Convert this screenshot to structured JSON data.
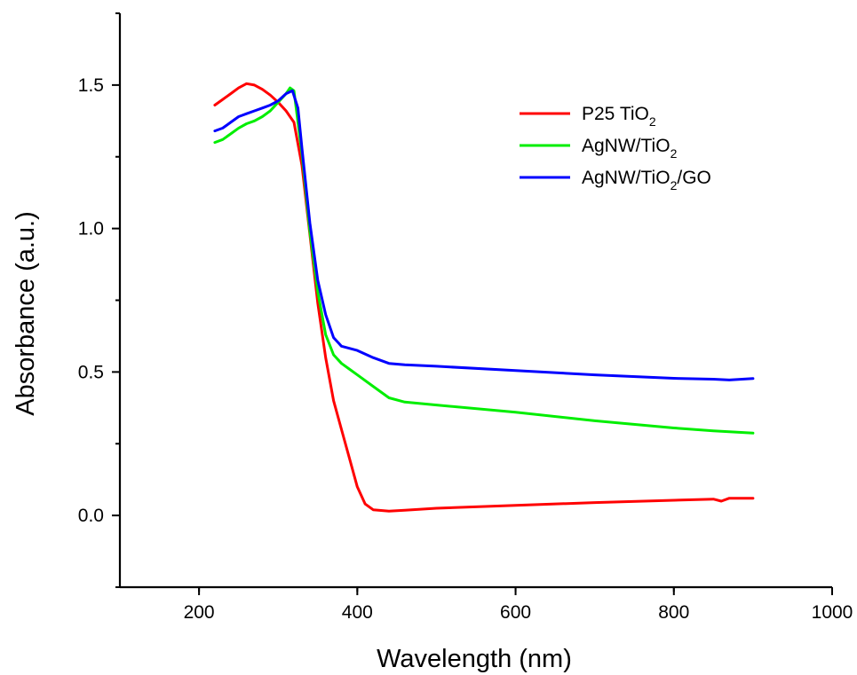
{
  "chart_data": {
    "type": "line",
    "xlabel": "Wavelength (nm)",
    "ylabel": "Absorbance (a.u.)",
    "xlim": [
      100,
      1000
    ],
    "ylim": [
      -0.25,
      1.75
    ],
    "xticks": [
      200,
      400,
      600,
      800,
      1000
    ],
    "xtick_labels": [
      "200",
      "400",
      "600",
      "800",
      "1000"
    ],
    "yticks": [
      0.0,
      0.5,
      1.0,
      1.5
    ],
    "ytick_labels": [
      "0.0",
      "0.5",
      "1.0",
      "1.5"
    ],
    "legend_position": "top-right",
    "series": [
      {
        "name": "P25 TiO2",
        "legend_main": "P25 TiO",
        "legend_sub": "2",
        "legend_tail": "",
        "color": "#ff0000",
        "points": [
          [
            220,
            1.43
          ],
          [
            230,
            1.45
          ],
          [
            240,
            1.47
          ],
          [
            250,
            1.49
          ],
          [
            260,
            1.505
          ],
          [
            270,
            1.5
          ],
          [
            280,
            1.485
          ],
          [
            290,
            1.465
          ],
          [
            300,
            1.44
          ],
          [
            310,
            1.41
          ],
          [
            320,
            1.37
          ],
          [
            330,
            1.22
          ],
          [
            340,
            0.98
          ],
          [
            350,
            0.74
          ],
          [
            360,
            0.55
          ],
          [
            370,
            0.4
          ],
          [
            380,
            0.3
          ],
          [
            390,
            0.2
          ],
          [
            400,
            0.1
          ],
          [
            410,
            0.04
          ],
          [
            420,
            0.02
          ],
          [
            440,
            0.015
          ],
          [
            460,
            0.018
          ],
          [
            500,
            0.025
          ],
          [
            600,
            0.035
          ],
          [
            700,
            0.045
          ],
          [
            800,
            0.053
          ],
          [
            850,
            0.057
          ],
          [
            860,
            0.05
          ],
          [
            870,
            0.06
          ],
          [
            900,
            0.06
          ]
        ]
      },
      {
        "name": "AgNW/TiO2",
        "legend_main": "AgNW/TiO",
        "legend_sub": "2",
        "legend_tail": "",
        "color": "#00ee00",
        "points": [
          [
            220,
            1.3
          ],
          [
            230,
            1.31
          ],
          [
            240,
            1.33
          ],
          [
            250,
            1.35
          ],
          [
            260,
            1.365
          ],
          [
            270,
            1.375
          ],
          [
            280,
            1.39
          ],
          [
            290,
            1.41
          ],
          [
            300,
            1.44
          ],
          [
            310,
            1.47
          ],
          [
            315,
            1.49
          ],
          [
            320,
            1.48
          ],
          [
            330,
            1.26
          ],
          [
            340,
            0.99
          ],
          [
            350,
            0.78
          ],
          [
            360,
            0.63
          ],
          [
            370,
            0.56
          ],
          [
            380,
            0.53
          ],
          [
            390,
            0.51
          ],
          [
            400,
            0.49
          ],
          [
            420,
            0.45
          ],
          [
            440,
            0.41
          ],
          [
            460,
            0.395
          ],
          [
            500,
            0.385
          ],
          [
            600,
            0.36
          ],
          [
            700,
            0.33
          ],
          [
            800,
            0.305
          ],
          [
            850,
            0.295
          ],
          [
            880,
            0.29
          ],
          [
            900,
            0.287
          ]
        ]
      },
      {
        "name": "AgNW/TiO2/GO",
        "legend_main": "AgNW/TiO",
        "legend_sub": "2",
        "legend_tail": "/GO",
        "color": "#0000ff",
        "points": [
          [
            220,
            1.34
          ],
          [
            230,
            1.35
          ],
          [
            240,
            1.37
          ],
          [
            250,
            1.39
          ],
          [
            260,
            1.4
          ],
          [
            270,
            1.41
          ],
          [
            280,
            1.42
          ],
          [
            290,
            1.43
          ],
          [
            300,
            1.445
          ],
          [
            310,
            1.47
          ],
          [
            318,
            1.48
          ],
          [
            325,
            1.42
          ],
          [
            330,
            1.28
          ],
          [
            340,
            1.02
          ],
          [
            350,
            0.82
          ],
          [
            360,
            0.7
          ],
          [
            370,
            0.62
          ],
          [
            380,
            0.59
          ],
          [
            400,
            0.575
          ],
          [
            420,
            0.55
          ],
          [
            440,
            0.53
          ],
          [
            460,
            0.525
          ],
          [
            500,
            0.52
          ],
          [
            600,
            0.505
          ],
          [
            700,
            0.49
          ],
          [
            800,
            0.478
          ],
          [
            850,
            0.475
          ],
          [
            870,
            0.472
          ],
          [
            900,
            0.477
          ]
        ]
      }
    ]
  }
}
